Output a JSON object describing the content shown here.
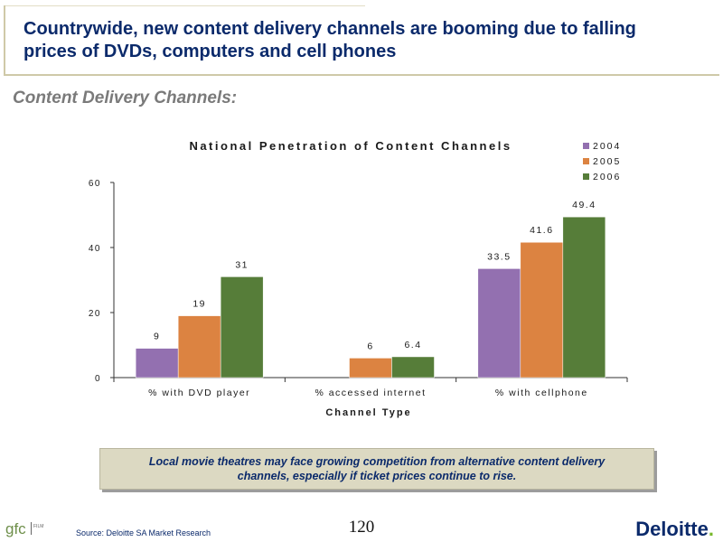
{
  "header": {
    "title": "Countrywide, new content delivery channels are booming due to falling prices of DVDs, computers and cell phones"
  },
  "section_title": "Content Delivery Channels:",
  "chart_data": {
    "type": "bar",
    "title": "National Penetration of Content Channels",
    "xlabel": "Channel Type",
    "ylabel": "",
    "ylim": [
      0,
      60
    ],
    "yticks": [
      0,
      20,
      40,
      60
    ],
    "categories": [
      "% with DVD player",
      "% accessed internet",
      "% with cellphone"
    ],
    "series": [
      {
        "name": "2004",
        "color": "#9370b0",
        "values": [
          9,
          null,
          33.5
        ],
        "labels": [
          "9",
          "",
          "33.5"
        ]
      },
      {
        "name": "2005",
        "color": "#dc8341",
        "values": [
          19,
          6,
          41.6
        ],
        "labels": [
          "19",
          "6",
          "41.6"
        ]
      },
      {
        "name": "2006",
        "color": "#567d39",
        "values": [
          31,
          6.4,
          49.4
        ],
        "labels": [
          "31",
          "6.4",
          "49.4"
        ]
      }
    ],
    "legend_position": "top-right",
    "grid": false
  },
  "callout": {
    "text": "Local movie theatres may face growing competition from alternative content delivery channels, especially if ticket prices continue to rise."
  },
  "footer": {
    "source": "Source: Deloitte SA Market Research",
    "page_number": "120",
    "brand_name": "Deloitte",
    "brand_dot": ".",
    "logo_text": "gfc",
    "logo_small": "FILM"
  }
}
